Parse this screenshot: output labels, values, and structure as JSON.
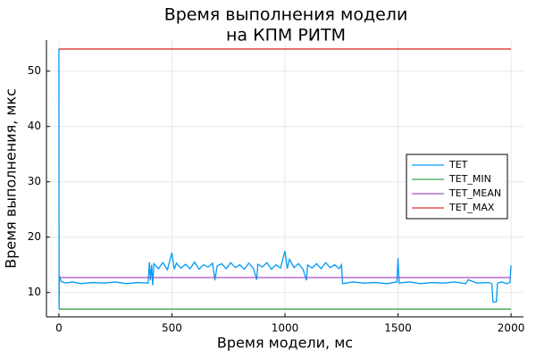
{
  "chart_data": {
    "type": "line",
    "title": [
      "Время выполнения модели",
      "на КПМ РИТМ"
    ],
    "x_label": "Время модели, мс",
    "y_label": "Время выполнения, мкс",
    "xlim": [
      -55,
      2055
    ],
    "xticks": [
      0,
      500,
      1000,
      1500,
      2000
    ],
    "ylim": [
      5.6,
      55.6
    ],
    "yticks": [
      10,
      20,
      30,
      40,
      50
    ],
    "grid": true,
    "legend": "right",
    "series": [
      {
        "name": "TET",
        "color": "#009af9",
        "x": [
          0,
          1,
          2,
          10,
          30,
          60,
          100,
          150,
          200,
          250,
          300,
          350,
          395,
          400,
          405,
          410,
          415,
          420,
          440,
          460,
          480,
          500,
          510,
          520,
          540,
          560,
          580,
          600,
          620,
          640,
          660,
          680,
          690,
          700,
          720,
          740,
          760,
          780,
          800,
          820,
          840,
          860,
          875,
          880,
          900,
          920,
          940,
          960,
          980,
          1000,
          1010,
          1020,
          1040,
          1060,
          1080,
          1095,
          1100,
          1120,
          1140,
          1160,
          1180,
          1200,
          1220,
          1240,
          1250,
          1255,
          1300,
          1350,
          1400,
          1450,
          1495,
          1500,
          1505,
          1550,
          1600,
          1650,
          1700,
          1750,
          1800,
          1810,
          1850,
          1900,
          1915,
          1920,
          1935,
          1940,
          1960,
          1980,
          1995,
          2000
        ],
        "values": [
          54,
          7,
          13,
          12,
          11.7,
          11.9,
          11.6,
          11.8,
          11.7,
          11.9,
          11.6,
          11.8,
          11.7,
          15.5,
          12.2,
          15,
          11.3,
          15.2,
          14.3,
          15.4,
          14.1,
          17.2,
          14.2,
          15.3,
          14.4,
          15.1,
          14.3,
          15.5,
          14.2,
          15,
          14.6,
          15.3,
          12.2,
          14.8,
          15.2,
          14.3,
          15.4,
          14.5,
          15,
          14.2,
          15.3,
          14.4,
          12.3,
          15.1,
          14.6,
          15.4,
          14.2,
          15,
          14.4,
          17.5,
          14.3,
          16,
          14.5,
          15.2,
          14.2,
          12.2,
          15,
          14.4,
          15.2,
          14.3,
          15.4,
          14.5,
          15,
          14.3,
          15,
          11.6,
          11.9,
          11.7,
          11.8,
          11.6,
          11.9,
          16.2,
          11.7,
          11.9,
          11.6,
          11.8,
          11.7,
          11.9,
          11.6,
          12.3,
          11.7,
          11.8,
          11.6,
          8.3,
          8.3,
          11.7,
          11.9,
          11.6,
          11.8,
          14.9
        ]
      },
      {
        "name": "TET_MIN",
        "color": "#3ea44e",
        "x": [
          0,
          2000
        ],
        "values": [
          7,
          7
        ]
      },
      {
        "name": "TET_MEAN",
        "color": "#a455c0",
        "x": [
          0,
          2000
        ],
        "values": [
          12.7,
          12.7
        ]
      },
      {
        "name": "TET_MAX",
        "color": "#e0352b",
        "x": [
          0,
          2000
        ],
        "values": [
          54,
          54
        ]
      }
    ]
  }
}
